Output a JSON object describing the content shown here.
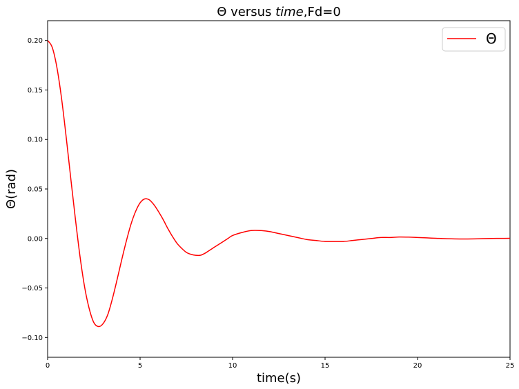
{
  "chart_data": {
    "type": "line",
    "title": {
      "prefix": "Θ versus ",
      "italic": "time",
      "suffix": ",Fd=0"
    },
    "xlabel": "time(s)",
    "ylabel": "Θ(rad)",
    "xlim": [
      0,
      25
    ],
    "ylim": [
      -0.12,
      0.22
    ],
    "xticks": [
      0,
      5,
      10,
      15,
      20,
      25
    ],
    "xtick_labels": [
      "0",
      "5",
      "10",
      "15",
      "20",
      "25"
    ],
    "yticks": [
      -0.1,
      -0.05,
      0.0,
      0.05,
      0.1,
      0.15,
      0.2
    ],
    "ytick_labels": [
      "−0.10",
      "−0.05",
      "0.00",
      "0.05",
      "0.10",
      "0.15",
      "0.20"
    ],
    "grid": false,
    "legend_position": "top-right",
    "series": [
      {
        "name": "Θ",
        "color": "#ff0000",
        "x": [
          0,
          0.25,
          0.5,
          0.75,
          1.0,
          1.25,
          1.5,
          1.75,
          2.0,
          2.25,
          2.5,
          2.75,
          3.0,
          3.25,
          3.5,
          3.75,
          4.0,
          4.25,
          4.5,
          4.75,
          5.0,
          5.25,
          5.5,
          5.75,
          6.0,
          6.25,
          6.5,
          6.75,
          7.0,
          7.25,
          7.5,
          7.75,
          8.0,
          8.25,
          8.5,
          8.75,
          9.0,
          9.25,
          9.5,
          9.75,
          10.0,
          10.5,
          11.0,
          11.5,
          12.0,
          12.5,
          13.0,
          13.5,
          14.0,
          14.5,
          15.0,
          15.5,
          16.0,
          16.5,
          17.0,
          17.5,
          18.0,
          18.5,
          19.0,
          19.5,
          20.0,
          20.5,
          21.0,
          21.5,
          22.0,
          22.5,
          23.0,
          23.5,
          24.0,
          24.5,
          25.0
        ],
        "y": [
          0.2,
          0.193,
          0.173,
          0.142,
          0.103,
          0.061,
          0.02,
          -0.018,
          -0.049,
          -0.071,
          -0.085,
          -0.089,
          -0.086,
          -0.077,
          -0.061,
          -0.042,
          -0.022,
          -0.003,
          0.014,
          0.027,
          0.036,
          0.04,
          0.039,
          0.034,
          0.027,
          0.019,
          0.01,
          0.002,
          -0.005,
          -0.01,
          -0.014,
          -0.016,
          -0.017,
          -0.017,
          -0.015,
          -0.012,
          -0.009,
          -0.006,
          -0.003,
          0.0,
          0.003,
          0.006,
          0.008,
          0.008,
          0.007,
          0.005,
          0.003,
          0.001,
          -0.001,
          -0.002,
          -0.003,
          -0.003,
          -0.003,
          -0.002,
          -0.001,
          0.0,
          0.001,
          0.001,
          0.0015,
          0.0014,
          0.001,
          0.0006,
          0.0002,
          -0.0002,
          -0.0004,
          -0.0005,
          -0.0004,
          -0.0002,
          0.0,
          0.0001,
          0.0002
        ]
      }
    ]
  }
}
